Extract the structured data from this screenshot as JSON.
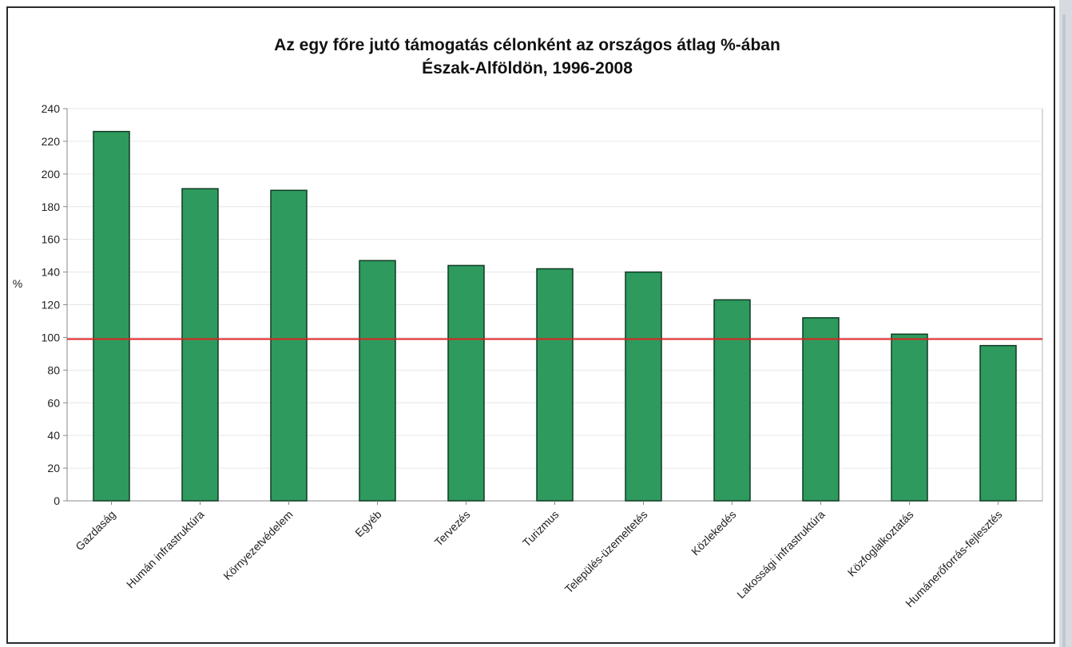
{
  "chart_data": {
    "type": "bar",
    "title_lines": [
      "Az egy főre jutó támogatás célonként az országos átlag %-ában",
      "Észak-Alföldön, 1996-2008"
    ],
    "ylabel": "%",
    "ylim": [
      0,
      240
    ],
    "yticks": [
      0,
      20,
      40,
      60,
      80,
      100,
      120,
      140,
      160,
      180,
      200,
      220,
      240
    ],
    "grid": true,
    "categories": [
      "Gazdaság",
      "Humán infrastruktúra",
      "Környezetvédelem",
      "Egyéb",
      "Tervezés",
      "Turizmus",
      "Település-üzemeltetés",
      "Közlekedés",
      "Lakossági infrastruktúra",
      "Közfoglalkoztatás",
      "Humánerőforrás-fejlesztés"
    ],
    "values": [
      226,
      191,
      190,
      147,
      144,
      142,
      140,
      123,
      112,
      102,
      95
    ],
    "reference_line": 99,
    "colors": {
      "bar": "#2e9a5e",
      "bar_edge": "#0f3b22",
      "reference_line": "#e02020",
      "grid": "#e6e6e6",
      "axis": "#888888"
    }
  }
}
